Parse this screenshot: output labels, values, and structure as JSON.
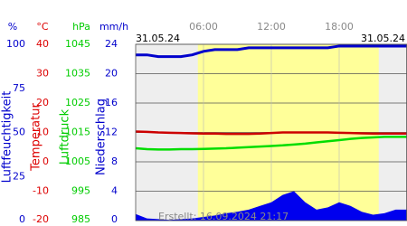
{
  "chart_data": {
    "type": "line",
    "date_left": "31.05.24",
    "date_right": "31.05.24",
    "footer": "Erstellt: 16.09.2024 21:17",
    "xlim": [
      0,
      24
    ],
    "xticks": [
      {
        "value": 6,
        "label": "06:00"
      },
      {
        "value": 12,
        "label": "12:00"
      },
      {
        "value": 18,
        "label": "18:00"
      }
    ],
    "daylight": [
      5.5,
      21.5
    ],
    "grid": true,
    "y_axes": [
      {
        "unit": "%",
        "title": "Luftfeuchtigkeit",
        "color": "#0000cc",
        "ylim": [
          0,
          100
        ],
        "yticks": [
          0,
          25,
          50,
          75,
          100
        ]
      },
      {
        "unit": "°C",
        "title": "Temperatur",
        "color": "#dd0000",
        "ylim": [
          -20,
          40
        ],
        "yticks": [
          -20,
          -10,
          0,
          10,
          20,
          30,
          40
        ]
      },
      {
        "unit": "hPa",
        "title": "Luftdruck",
        "color": "#00cc00",
        "ylim": [
          985,
          1045
        ],
        "yticks": [
          985,
          995,
          1005,
          1015,
          1025,
          1035,
          1045
        ]
      },
      {
        "unit": "mm/h",
        "title": "Niederschlag",
        "color": "#0000cc",
        "ylim": [
          0,
          24
        ],
        "yticks": [
          0,
          4,
          8,
          12,
          16,
          20,
          24
        ]
      }
    ],
    "x": [
      0,
      1,
      2,
      3,
      4,
      5,
      6,
      7,
      8,
      9,
      10,
      11,
      12,
      13,
      14,
      15,
      16,
      17,
      18,
      19,
      20,
      21,
      22,
      23,
      24
    ],
    "series": [
      {
        "name": "Niederschlag",
        "axis": 3,
        "kind": "area",
        "color": "#0000ee",
        "values": [
          0.9,
          0.3,
          0.2,
          0.1,
          0.2,
          0.3,
          0.5,
          0.7,
          1,
          1.2,
          1.5,
          2,
          2.5,
          3.5,
          4,
          2.5,
          1.5,
          1.8,
          2.5,
          2,
          1.2,
          0.8,
          1,
          1.5,
          1.5
        ]
      },
      {
        "name": "Luftdruck",
        "axis": 2,
        "kind": "line",
        "color": "#00dd00",
        "values": [
          1009.6,
          1009.3,
          1009.2,
          1009.2,
          1009.3,
          1009.3,
          1009.4,
          1009.5,
          1009.6,
          1009.8,
          1010,
          1010.2,
          1010.4,
          1010.6,
          1010.9,
          1011.2,
          1011.6,
          1012,
          1012.4,
          1012.8,
          1013.1,
          1013.3,
          1013.5,
          1013.5,
          1013.5
        ]
      },
      {
        "name": "Temperatur",
        "axis": 1,
        "kind": "line",
        "color": "#cc0000",
        "values": [
          10.3,
          10.2,
          10,
          9.9,
          9.8,
          9.7,
          9.6,
          9.6,
          9.5,
          9.5,
          9.5,
          9.6,
          9.8,
          10,
          10,
          10,
          10,
          10,
          9.9,
          9.8,
          9.7,
          9.6,
          9.6,
          9.6,
          9.6
        ]
      },
      {
        "name": "Luftfeuchtigkeit",
        "axis": 0,
        "kind": "line",
        "color": "#0000cc",
        "values": [
          94,
          94,
          93,
          93,
          93,
          94,
          96,
          97,
          97,
          97,
          98,
          98,
          98,
          98,
          98,
          98,
          98,
          98,
          99,
          99,
          99,
          99,
          99,
          99,
          99
        ]
      }
    ]
  }
}
